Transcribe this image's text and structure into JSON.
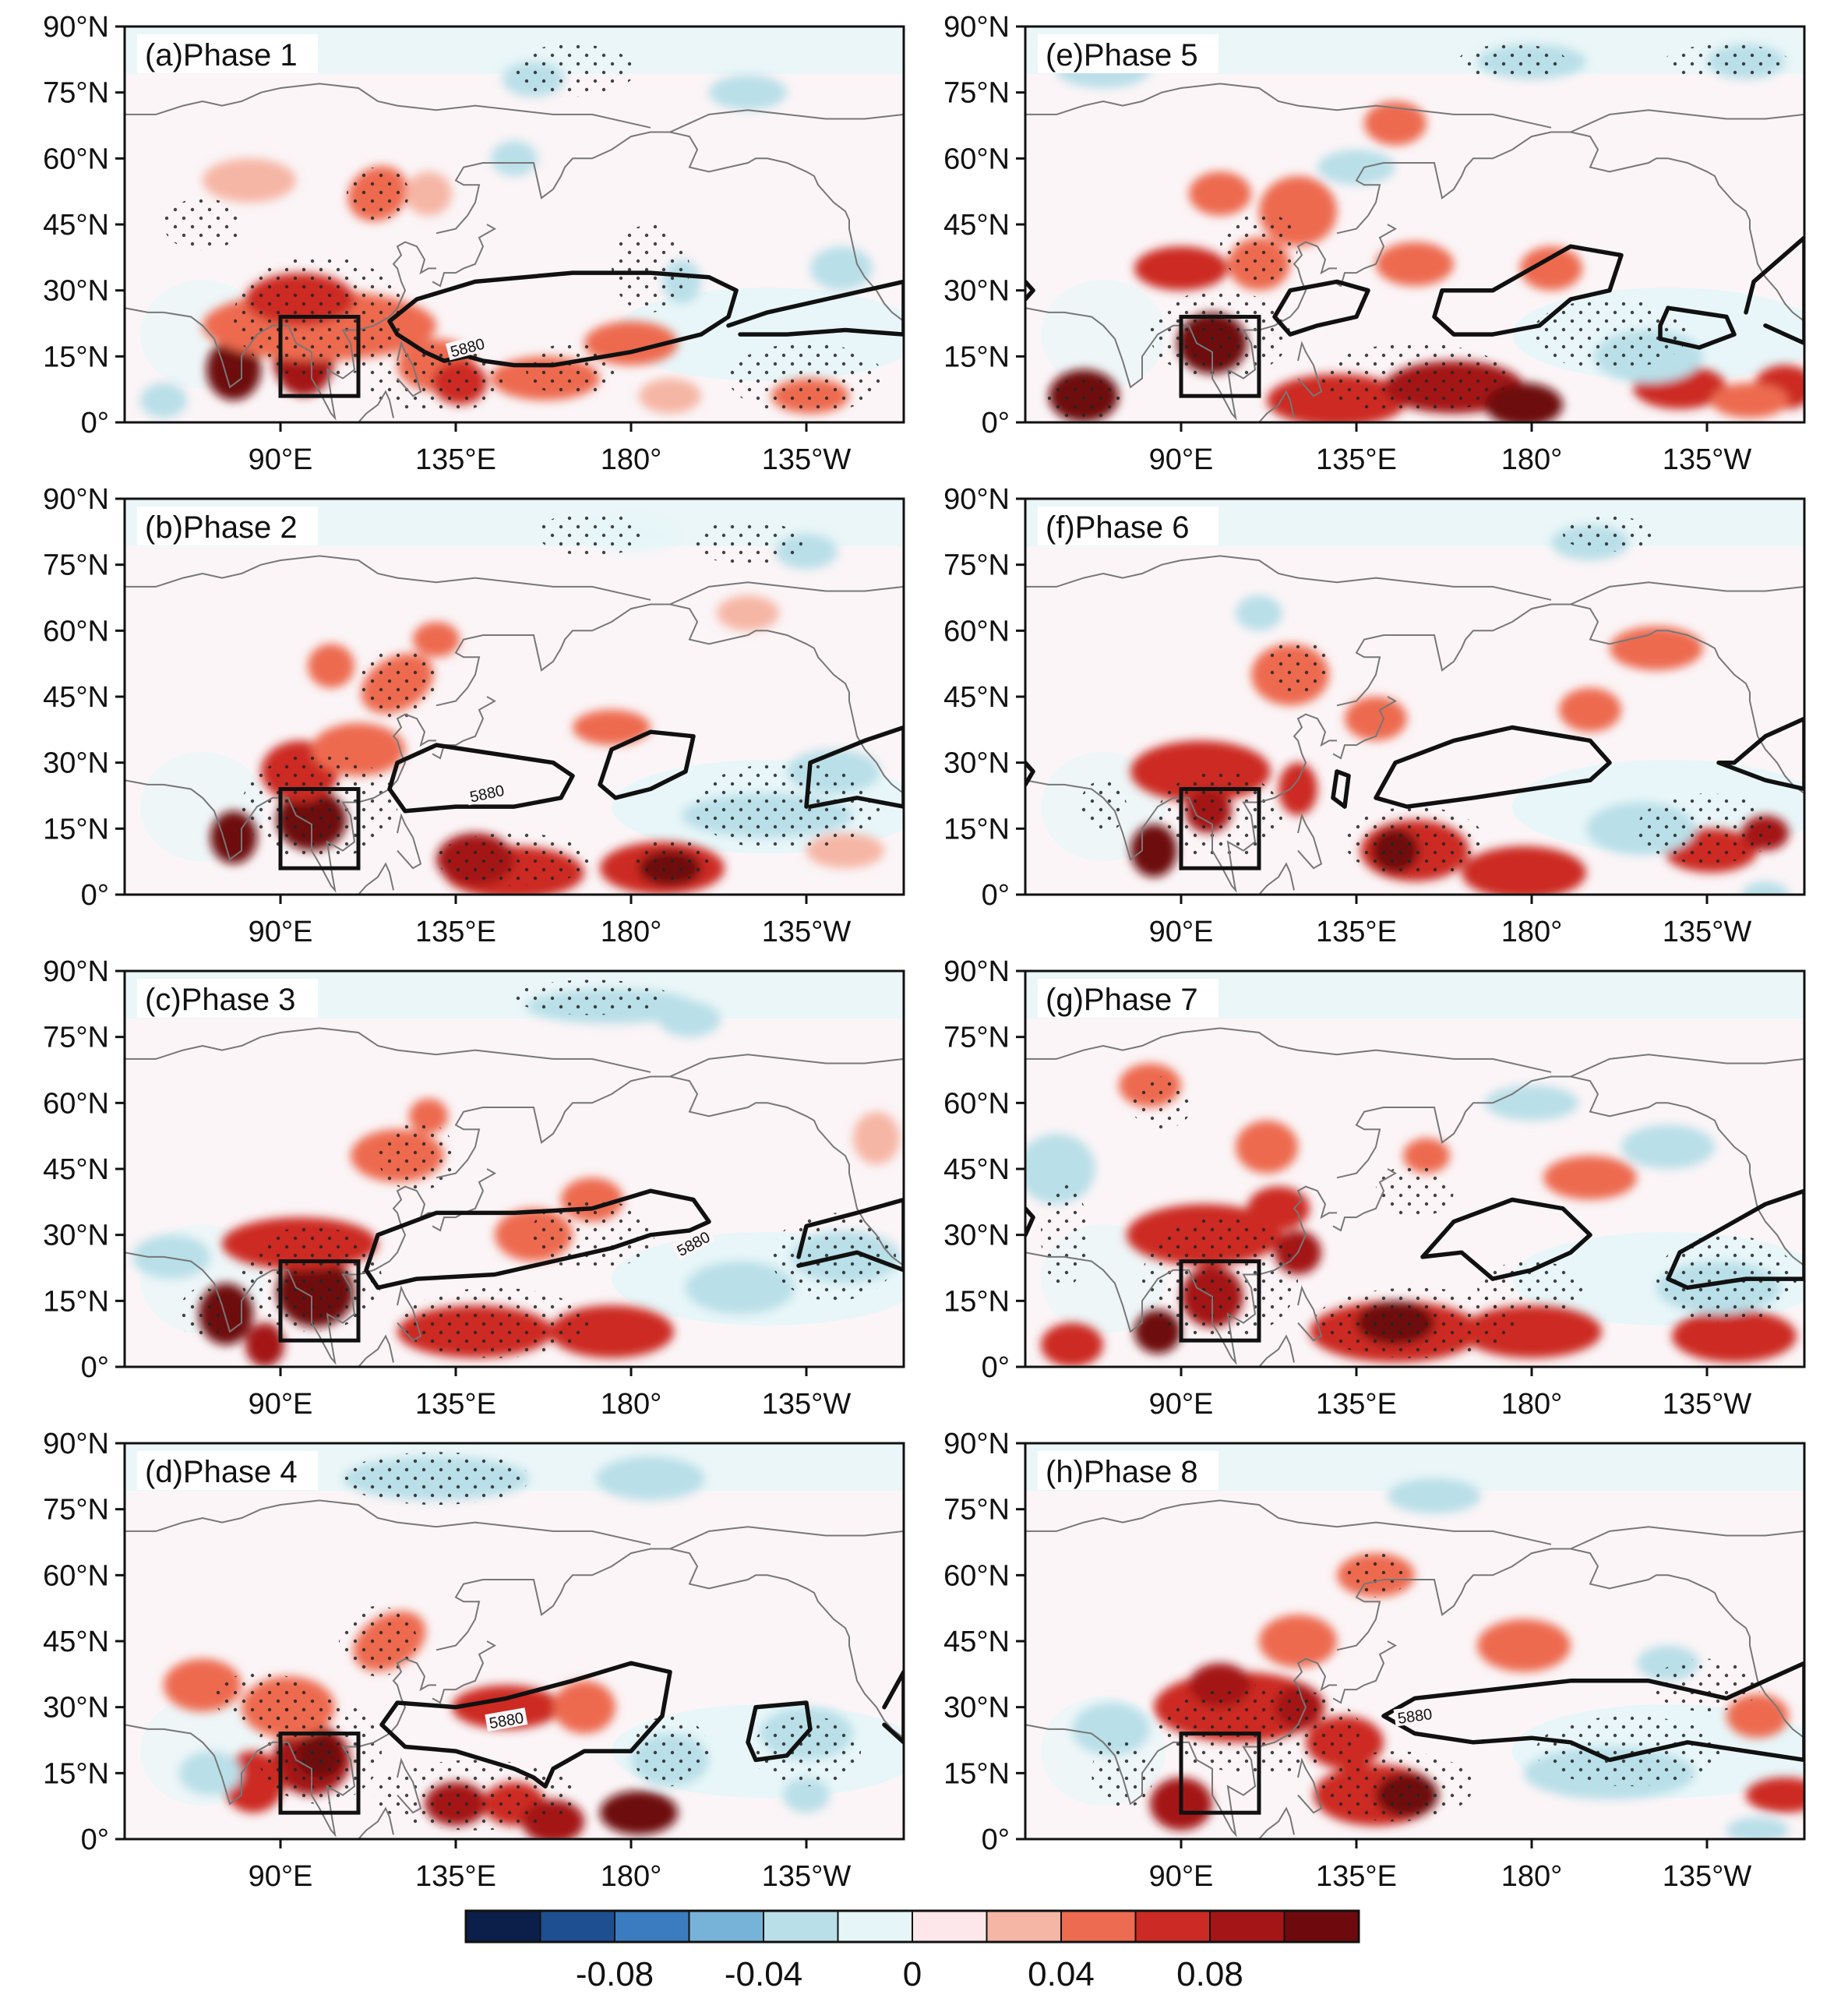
{
  "map": {
    "lat_ticks": [
      "90°N",
      "75°N",
      "60°N",
      "45°N",
      "30°N",
      "15°N",
      "0°"
    ],
    "lon_ticks": [
      "90°E",
      "135°E",
      "180°",
      "135°W"
    ],
    "contour_label": "5880",
    "box_region": {
      "lon": [
        90,
        110
      ],
      "lat": [
        6,
        24
      ]
    },
    "panels": [
      {
        "label": "(a)Phase 1"
      },
      {
        "label": "(b)Phase 2"
      },
      {
        "label": "(c)Phase 3"
      },
      {
        "label": "(d)Phase 4"
      },
      {
        "label": "(e)Phase 5"
      },
      {
        "label": "(f)Phase 6"
      },
      {
        "label": "(g)Phase 7"
      },
      {
        "label": "(h)Phase 8"
      }
    ]
  },
  "colorbar": {
    "colors": [
      "#0c1f4a",
      "#1d4f91",
      "#3a7cbf",
      "#77b3d9",
      "#b9dfe8",
      "#e6f6f8",
      "#fde7ea",
      "#f6b6a5",
      "#ed6b50",
      "#cc2a24",
      "#a41518",
      "#6e0a0d"
    ],
    "labels": [
      "-0.08",
      "-0.04",
      "0",
      "0.04",
      "0.08"
    ]
  },
  "palette": {
    "base": "#fbf5f7",
    "land_line": "#777777",
    "contour": "#111111"
  }
}
